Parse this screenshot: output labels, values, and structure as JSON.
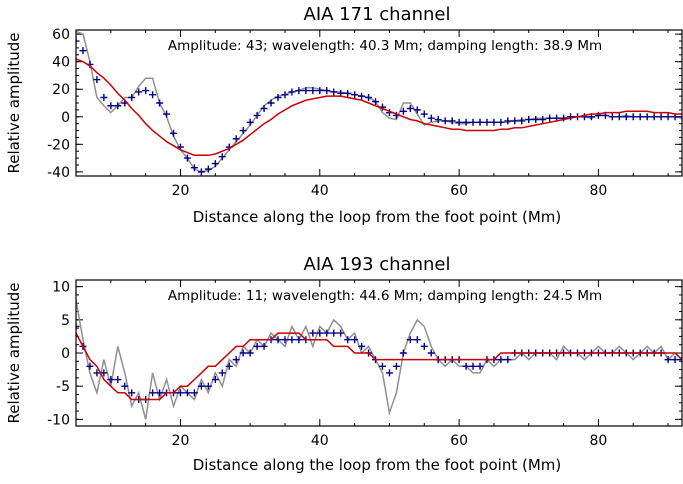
{
  "chart_data": [
    {
      "type": "line",
      "title": "AIA 171 channel",
      "annotation": "Amplitude: 43; wavelength: 40.3 Mm; damping length: 38.9 Mm",
      "xlabel": "Distance along the loop from the foot point (Mm)",
      "ylabel": "Relative amplitude",
      "xlim": [
        5,
        92
      ],
      "ylim": [
        -43,
        63
      ],
      "xticks": [
        20,
        40,
        60,
        80
      ],
      "yticks": [
        -40,
        -20,
        0,
        20,
        40,
        60
      ],
      "legend": "none",
      "series": [
        {
          "style": "gray-line",
          "color": "#909090",
          "x": [
            5,
            6,
            7,
            8,
            9,
            10,
            11,
            12,
            13,
            14,
            15,
            16,
            17,
            18,
            19,
            20,
            21,
            22,
            23,
            24,
            25,
            26,
            27,
            28,
            29,
            30,
            31,
            32,
            33,
            34,
            35,
            36,
            37,
            38,
            39,
            40,
            41,
            42,
            43,
            44,
            45,
            46,
            47,
            48,
            49,
            50,
            51,
            52,
            53,
            54,
            55,
            56,
            57,
            58,
            59,
            60,
            61,
            62,
            63,
            64,
            65,
            66,
            67,
            68,
            69,
            70,
            71,
            72,
            73,
            74,
            75,
            76,
            77,
            78,
            79,
            80,
            81,
            82,
            83,
            84,
            85,
            86,
            87,
            88,
            89,
            90,
            91,
            92
          ],
          "y": [
            62,
            60,
            40,
            14,
            8,
            3,
            8,
            14,
            14,
            22,
            28,
            28,
            10,
            0,
            -14,
            -24,
            -30,
            -38,
            -40,
            -39,
            -36,
            -30,
            -24,
            -18,
            -12,
            -6,
            1,
            8,
            12,
            15,
            16,
            18,
            19,
            21,
            21,
            20,
            19,
            18,
            18,
            17,
            16,
            15,
            14,
            11,
            3,
            -1,
            -2,
            10,
            10,
            2,
            -6,
            -4,
            -3,
            -3,
            -4,
            -5,
            -5,
            -4,
            -4,
            -4,
            -4,
            -4,
            -4,
            -3,
            -2,
            -2,
            -1,
            -1,
            -1,
            -1,
            -1,
            0,
            0,
            0,
            -1,
            1,
            1,
            0,
            0,
            1,
            0,
            0,
            0,
            0,
            0,
            0,
            0,
            -1
          ]
        },
        {
          "style": "blue-plus",
          "color": "#00008b",
          "x": [
            5,
            6,
            7,
            8,
            9,
            10,
            11,
            12,
            13,
            14,
            15,
            16,
            17,
            18,
            19,
            20,
            21,
            22,
            23,
            24,
            25,
            26,
            27,
            28,
            29,
            30,
            31,
            32,
            33,
            34,
            35,
            36,
            37,
            38,
            39,
            40,
            41,
            42,
            43,
            44,
            45,
            46,
            47,
            48,
            49,
            50,
            51,
            52,
            53,
            54,
            55,
            56,
            57,
            58,
            59,
            60,
            61,
            62,
            63,
            64,
            65,
            66,
            67,
            68,
            69,
            70,
            71,
            72,
            73,
            74,
            75,
            76,
            77,
            78,
            79,
            80,
            81,
            82,
            83,
            84,
            85,
            86,
            87,
            88,
            89,
            90,
            91,
            92
          ],
          "y": [
            55,
            48,
            38,
            27,
            14,
            8,
            8,
            10,
            14,
            18,
            19,
            16,
            10,
            2,
            -12,
            -22,
            -30,
            -37,
            -40,
            -38,
            -34,
            -29,
            -22,
            -16,
            -10,
            -4,
            1,
            6,
            10,
            14,
            16,
            18,
            19,
            19,
            19,
            19,
            19,
            18,
            17,
            17,
            16,
            15,
            14,
            11,
            7,
            3,
            1,
            4,
            6,
            5,
            2,
            -1,
            -2,
            -3,
            -3,
            -4,
            -4,
            -4,
            -4,
            -4,
            -4,
            -4,
            -3,
            -3,
            -3,
            -2,
            -2,
            -2,
            -1,
            -1,
            -1,
            0,
            0,
            0,
            0,
            1,
            1,
            0,
            0,
            0,
            0,
            0,
            0,
            0,
            0,
            0,
            0,
            0
          ]
        },
        {
          "style": "red-fit",
          "color": "#cc0000",
          "x": [
            5,
            6,
            7,
            8,
            9,
            10,
            11,
            12,
            13,
            14,
            15,
            16,
            17,
            18,
            19,
            20,
            21,
            22,
            23,
            24,
            25,
            26,
            27,
            28,
            29,
            30,
            31,
            32,
            33,
            34,
            35,
            36,
            37,
            38,
            39,
            40,
            41,
            42,
            43,
            44,
            45,
            46,
            47,
            48,
            49,
            50,
            51,
            52,
            53,
            54,
            55,
            56,
            57,
            58,
            59,
            60,
            61,
            62,
            63,
            64,
            65,
            66,
            67,
            68,
            69,
            70,
            71,
            72,
            73,
            74,
            75,
            76,
            77,
            78,
            79,
            80,
            81,
            82,
            83,
            84,
            85,
            86,
            87,
            88,
            89,
            90,
            91,
            92
          ],
          "y": [
            42,
            40,
            37,
            32,
            28,
            23,
            17,
            12,
            6,
            1,
            -5,
            -10,
            -14,
            -18,
            -21,
            -24,
            -26,
            -28,
            -28,
            -28,
            -27,
            -25,
            -23,
            -20,
            -17,
            -13,
            -9,
            -5,
            -2,
            2,
            5,
            8,
            10,
            12,
            13,
            14,
            15,
            15,
            15,
            14,
            13,
            12,
            10,
            8,
            6,
            4,
            2,
            0,
            -2,
            -3,
            -5,
            -6,
            -7,
            -8,
            -9,
            -9,
            -10,
            -10,
            -10,
            -10,
            -10,
            -9,
            -9,
            -8,
            -8,
            -7,
            -6,
            -5,
            -4,
            -3,
            -2,
            -1,
            0,
            1,
            2,
            2,
            3,
            3,
            3,
            4,
            4,
            4,
            4,
            3,
            3,
            3,
            2,
            2
          ]
        }
      ]
    },
    {
      "type": "line",
      "title": "AIA 193 channel",
      "annotation": "Amplitude: 11; wavelength: 44.6 Mm; damping length: 24.5 Mm",
      "xlabel": "Distance along the loop from the foot point (Mm)",
      "ylabel": "Relative amplitude",
      "xlim": [
        5,
        92
      ],
      "ylim": [
        -11,
        11
      ],
      "xticks": [
        20,
        40,
        60,
        80
      ],
      "yticks": [
        -10,
        -5,
        0,
        5,
        10
      ],
      "legend": "none",
      "series": [
        {
          "style": "gray-line",
          "color": "#909090",
          "x": [
            5,
            6,
            7,
            8,
            9,
            10,
            11,
            12,
            13,
            14,
            15,
            16,
            17,
            18,
            19,
            20,
            21,
            22,
            23,
            24,
            25,
            26,
            27,
            28,
            29,
            30,
            31,
            32,
            33,
            34,
            35,
            36,
            37,
            38,
            39,
            40,
            41,
            42,
            43,
            44,
            45,
            46,
            47,
            48,
            49,
            50,
            51,
            52,
            53,
            54,
            55,
            56,
            57,
            58,
            59,
            60,
            61,
            62,
            63,
            64,
            65,
            66,
            67,
            68,
            69,
            70,
            71,
            72,
            73,
            74,
            75,
            76,
            77,
            78,
            79,
            80,
            81,
            82,
            83,
            84,
            85,
            86,
            87,
            88,
            89,
            90,
            91,
            92
          ],
          "y": [
            8,
            2,
            -3,
            -6,
            -1,
            -5,
            1,
            -3,
            -8,
            -6,
            -10,
            -3,
            -7,
            -4,
            -8,
            -5,
            -6,
            -7,
            -4,
            -6,
            -3,
            -5,
            -1,
            -2,
            1,
            0,
            2,
            1,
            3,
            2,
            1,
            4,
            2,
            4,
            1,
            4,
            3,
            5,
            4,
            2,
            3,
            0,
            1,
            -1,
            -3,
            -9,
            -6,
            0,
            3,
            5,
            4,
            1,
            -1,
            -2,
            -1,
            -2,
            -2,
            -3,
            -3,
            -1,
            -2,
            -1,
            -1,
            -1,
            0,
            -1,
            0,
            0,
            0,
            -1,
            1,
            0,
            0,
            -1,
            0,
            1,
            0,
            0,
            1,
            0,
            -1,
            0,
            1,
            0,
            1,
            -1,
            0,
            -1
          ]
        },
        {
          "style": "blue-plus",
          "color": "#00008b",
          "x": [
            5,
            6,
            7,
            8,
            9,
            10,
            11,
            12,
            13,
            14,
            15,
            16,
            17,
            18,
            19,
            20,
            21,
            22,
            23,
            24,
            25,
            26,
            27,
            28,
            29,
            30,
            31,
            32,
            33,
            34,
            35,
            36,
            37,
            38,
            39,
            40,
            41,
            42,
            43,
            44,
            45,
            46,
            47,
            48,
            49,
            50,
            51,
            52,
            53,
            54,
            55,
            56,
            57,
            58,
            59,
            60,
            61,
            62,
            63,
            64,
            65,
            66,
            67,
            68,
            69,
            70,
            71,
            72,
            73,
            74,
            75,
            76,
            77,
            78,
            79,
            80,
            81,
            82,
            83,
            84,
            85,
            86,
            87,
            88,
            89,
            90,
            91,
            92
          ],
          "y": [
            4,
            1,
            -2,
            -3,
            -3,
            -4,
            -4,
            -5,
            -6,
            -7,
            -7,
            -6,
            -6,
            -6,
            -6,
            -6,
            -6,
            -6,
            -5,
            -5,
            -4,
            -3,
            -2,
            -1,
            0,
            0,
            1,
            1,
            2,
            2,
            2,
            2,
            2,
            2,
            3,
            3,
            3,
            3,
            3,
            2,
            2,
            1,
            0,
            -1,
            -2,
            -3,
            -2,
            0,
            2,
            2,
            1,
            0,
            -1,
            -1,
            -1,
            -1,
            -2,
            -2,
            -2,
            -1,
            -1,
            -1,
            -1,
            0,
            0,
            0,
            0,
            0,
            0,
            0,
            0,
            0,
            0,
            0,
            0,
            0,
            0,
            0,
            0,
            0,
            0,
            0,
            0,
            0,
            0,
            -1,
            -1,
            -1
          ]
        },
        {
          "style": "red-fit",
          "color": "#cc0000",
          "x": [
            5,
            6,
            7,
            8,
            9,
            10,
            11,
            12,
            13,
            14,
            15,
            16,
            17,
            18,
            19,
            20,
            21,
            22,
            23,
            24,
            25,
            26,
            27,
            28,
            29,
            30,
            31,
            32,
            33,
            34,
            35,
            36,
            37,
            38,
            39,
            40,
            41,
            42,
            43,
            44,
            45,
            46,
            47,
            48,
            49,
            50,
            51,
            52,
            53,
            54,
            55,
            56,
            57,
            58,
            59,
            60,
            61,
            62,
            63,
            64,
            65,
            66,
            67,
            68,
            69,
            70,
            71,
            72,
            73,
            74,
            75,
            76,
            77,
            78,
            79,
            80,
            81,
            82,
            83,
            84,
            85,
            86,
            87,
            88,
            89,
            90,
            91,
            92
          ],
          "y": [
            3,
            1,
            -1,
            -2,
            -4,
            -5,
            -6,
            -6,
            -7,
            -7,
            -7,
            -7,
            -7,
            -6,
            -6,
            -5,
            -5,
            -4,
            -3,
            -2,
            -2,
            -1,
            0,
            1,
            1,
            2,
            2,
            2,
            2,
            3,
            3,
            3,
            3,
            2,
            2,
            2,
            2,
            1,
            1,
            1,
            0,
            0,
            0,
            -1,
            -1,
            -1,
            -1,
            -1,
            -1,
            -1,
            -1,
            -1,
            -1,
            -1,
            -1,
            -1,
            -1,
            -1,
            -1,
            -1,
            -1,
            0,
            0,
            0,
            0,
            0,
            0,
            0,
            0,
            0,
            0,
            0,
            0,
            0,
            0,
            0,
            0,
            0,
            0,
            0,
            0,
            0,
            0,
            0,
            0,
            0,
            0,
            -1
          ]
        }
      ]
    }
  ]
}
